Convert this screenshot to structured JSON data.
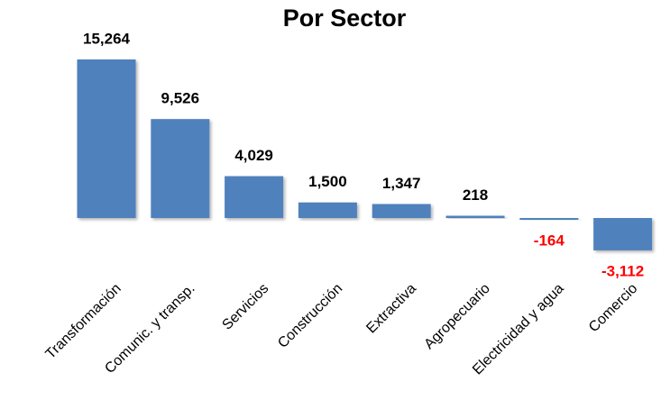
{
  "chart_data": {
    "type": "bar",
    "title": "Por Sector",
    "categories": [
      "Transformación",
      "Comunic. y transp.",
      "Servicios",
      "Construcción",
      "Extractiva",
      "Agropecuario",
      "Electricidad y agua",
      "Comercio"
    ],
    "values": [
      15264,
      9526,
      4029,
      1500,
      1347,
      218,
      -164,
      -3112
    ],
    "value_labels": [
      "15,264",
      "9,526",
      "4,029",
      "1,500",
      "1,347",
      "218",
      "-164",
      "-3,112"
    ],
    "color": "#4f81bd",
    "positive_label_color": "#000000",
    "negative_label_color": "#ff0000"
  }
}
